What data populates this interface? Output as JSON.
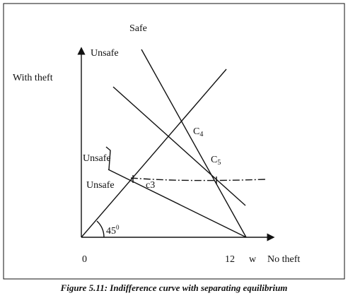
{
  "figure": {
    "labels": {
      "safe": "Safe",
      "unsafe_top": "Unsafe",
      "with_theft": "With theft",
      "unsafe_mid": "Unsafe",
      "unsafe_low": "Unsafe",
      "c3": "c3",
      "origin": "0",
      "twelve": "12",
      "w": "w",
      "no_theft": "No theft"
    },
    "c4": {
      "base": "C",
      "sub": "4"
    },
    "c5": {
      "base": "C",
      "sub": "5"
    },
    "angle": {
      "base": "45",
      "sup": "0"
    },
    "caption": "Figure 5.11: Indifference curve with separating equilibrium"
  }
}
